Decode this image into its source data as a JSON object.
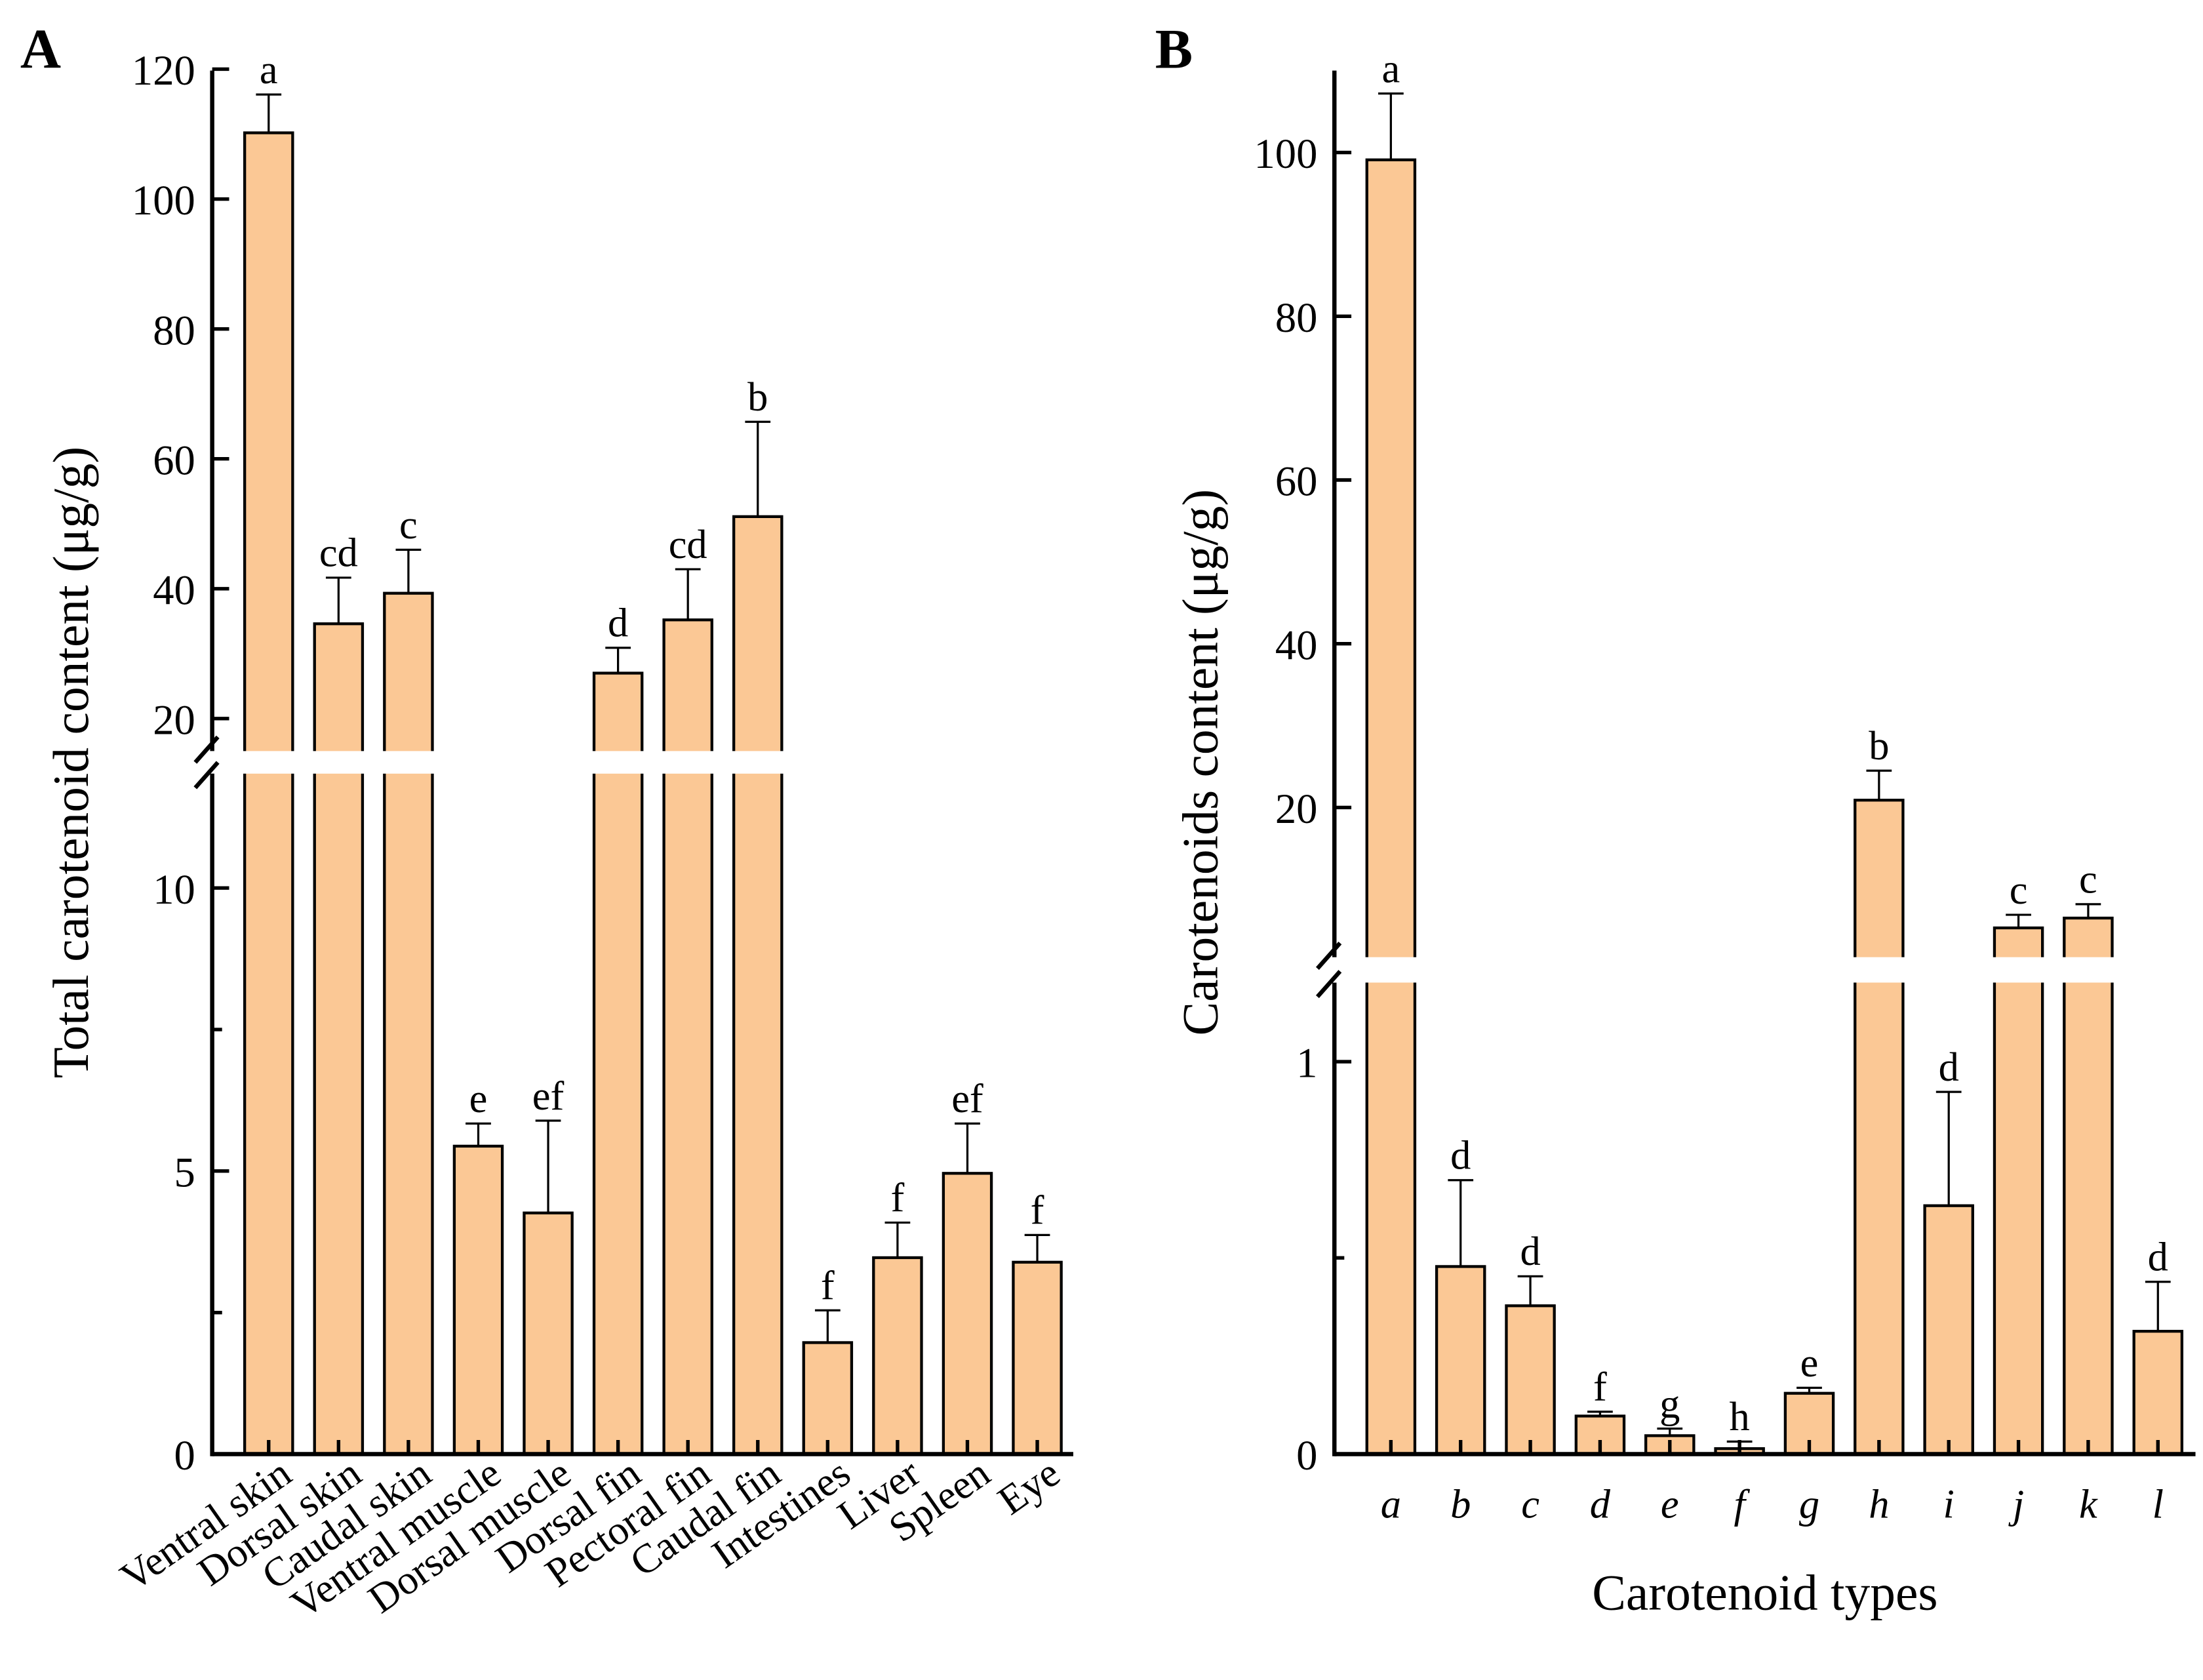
{
  "chart_data": [
    {
      "panel_label": "A",
      "type": "bar",
      "title": "",
      "xlabel": "",
      "ylabel": "Total carotenoid content (μg/g)",
      "axis_break": true,
      "ylim_lower": [
        0,
        12
      ],
      "ylim_upper": [
        20,
        120
      ],
      "yticks_lower": [
        "0",
        "5",
        "10"
      ],
      "yticks_upper": [
        "20",
        "40",
        "60",
        "80",
        "100",
        "120"
      ],
      "categories": [
        "Ventral skin",
        "Dorsal skin",
        "Caudal skin",
        "Ventral muscle",
        "Dorsal muscle",
        "Dorsal fin",
        "Pectoral fin",
        "Caudal fin",
        "Intestines",
        "Liver",
        "Spleen",
        "Eye"
      ],
      "values": [
        110.2,
        34.6,
        39.3,
        5.44,
        4.26,
        27.0,
        35.2,
        51.1,
        1.97,
        3.47,
        4.96,
        3.39
      ],
      "error": [
        5.9,
        7.1,
        6.7,
        0.4,
        1.63,
        3.9,
        7.8,
        14.6,
        0.57,
        0.62,
        0.88,
        0.48
      ],
      "significance": [
        "a",
        "cd",
        "c",
        "e",
        "ef",
        "d",
        "cd",
        "b",
        "f",
        "f",
        "ef",
        "f"
      ],
      "bar_color": "#FBC895"
    },
    {
      "panel_label": "B",
      "type": "bar",
      "title": "",
      "xlabel": "Carotenoid types",
      "ylabel": "Carotenoids content (μg/g)",
      "axis_break": true,
      "ylim_lower": [
        0,
        1.2
      ],
      "ylim_upper": [
        3,
        110
      ],
      "yticks_lower": [
        "0",
        "1"
      ],
      "yticks_upper": [
        "20",
        "40",
        "60",
        "80",
        "100"
      ],
      "categories": [
        "a",
        "b",
        "c",
        "d",
        "e",
        "f",
        "g",
        "h",
        "i",
        "j",
        "k",
        "l"
      ],
      "values": [
        99.1,
        0.478,
        0.378,
        0.097,
        0.047,
        0.014,
        0.155,
        20.9,
        0.633,
        5.3,
        6.5,
        0.313
      ],
      "error": [
        8.1,
        0.22,
        0.075,
        0.011,
        0.018,
        0.018,
        0.014,
        3.6,
        0.29,
        1.6,
        1.7,
        0.126
      ],
      "significance": [
        "a",
        "d",
        "d",
        "f",
        "g",
        "h",
        "e",
        "b",
        "d",
        "c",
        "c",
        "d"
      ],
      "bar_color": "#FBC895"
    }
  ]
}
